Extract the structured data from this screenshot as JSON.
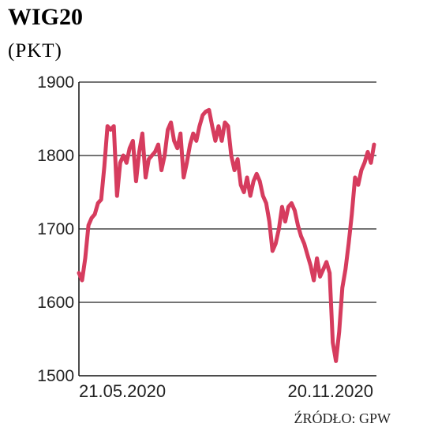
{
  "chart_data": {
    "type": "line",
    "title": "WIG20",
    "subtitle": "(PKT)",
    "source": "ŹRÓDŁO: GPW",
    "ylim": [
      1500,
      1900
    ],
    "yticks": [
      "1900",
      "1800",
      "1700",
      "1600",
      "1500"
    ],
    "x_labels": [
      "21.05.2020",
      "20.11.2020"
    ],
    "grid": true,
    "colors": {
      "line": "#d63c5e",
      "grid": "#222222",
      "axis": "#111111"
    },
    "series": [
      {
        "values": [
          1640,
          1630,
          1660,
          1705,
          1715,
          1720,
          1735,
          1740,
          1785,
          1840,
          1835,
          1840,
          1745,
          1790,
          1800,
          1790,
          1810,
          1820,
          1765,
          1805,
          1830,
          1770,
          1795,
          1800,
          1805,
          1815,
          1780,
          1800,
          1835,
          1845,
          1820,
          1810,
          1830,
          1770,
          1790,
          1815,
          1830,
          1820,
          1840,
          1855,
          1860,
          1862,
          1840,
          1820,
          1840,
          1820,
          1845,
          1840,
          1800,
          1780,
          1795,
          1760,
          1750,
          1770,
          1745,
          1765,
          1775,
          1765,
          1745,
          1735,
          1710,
          1670,
          1680,
          1700,
          1730,
          1710,
          1730,
          1735,
          1725,
          1705,
          1690,
          1680,
          1665,
          1650,
          1630,
          1660,
          1635,
          1645,
          1655,
          1640,
          1545,
          1520,
          1560,
          1620,
          1645,
          1680,
          1720,
          1770,
          1760,
          1780,
          1790,
          1805,
          1790,
          1815
        ]
      }
    ]
  }
}
